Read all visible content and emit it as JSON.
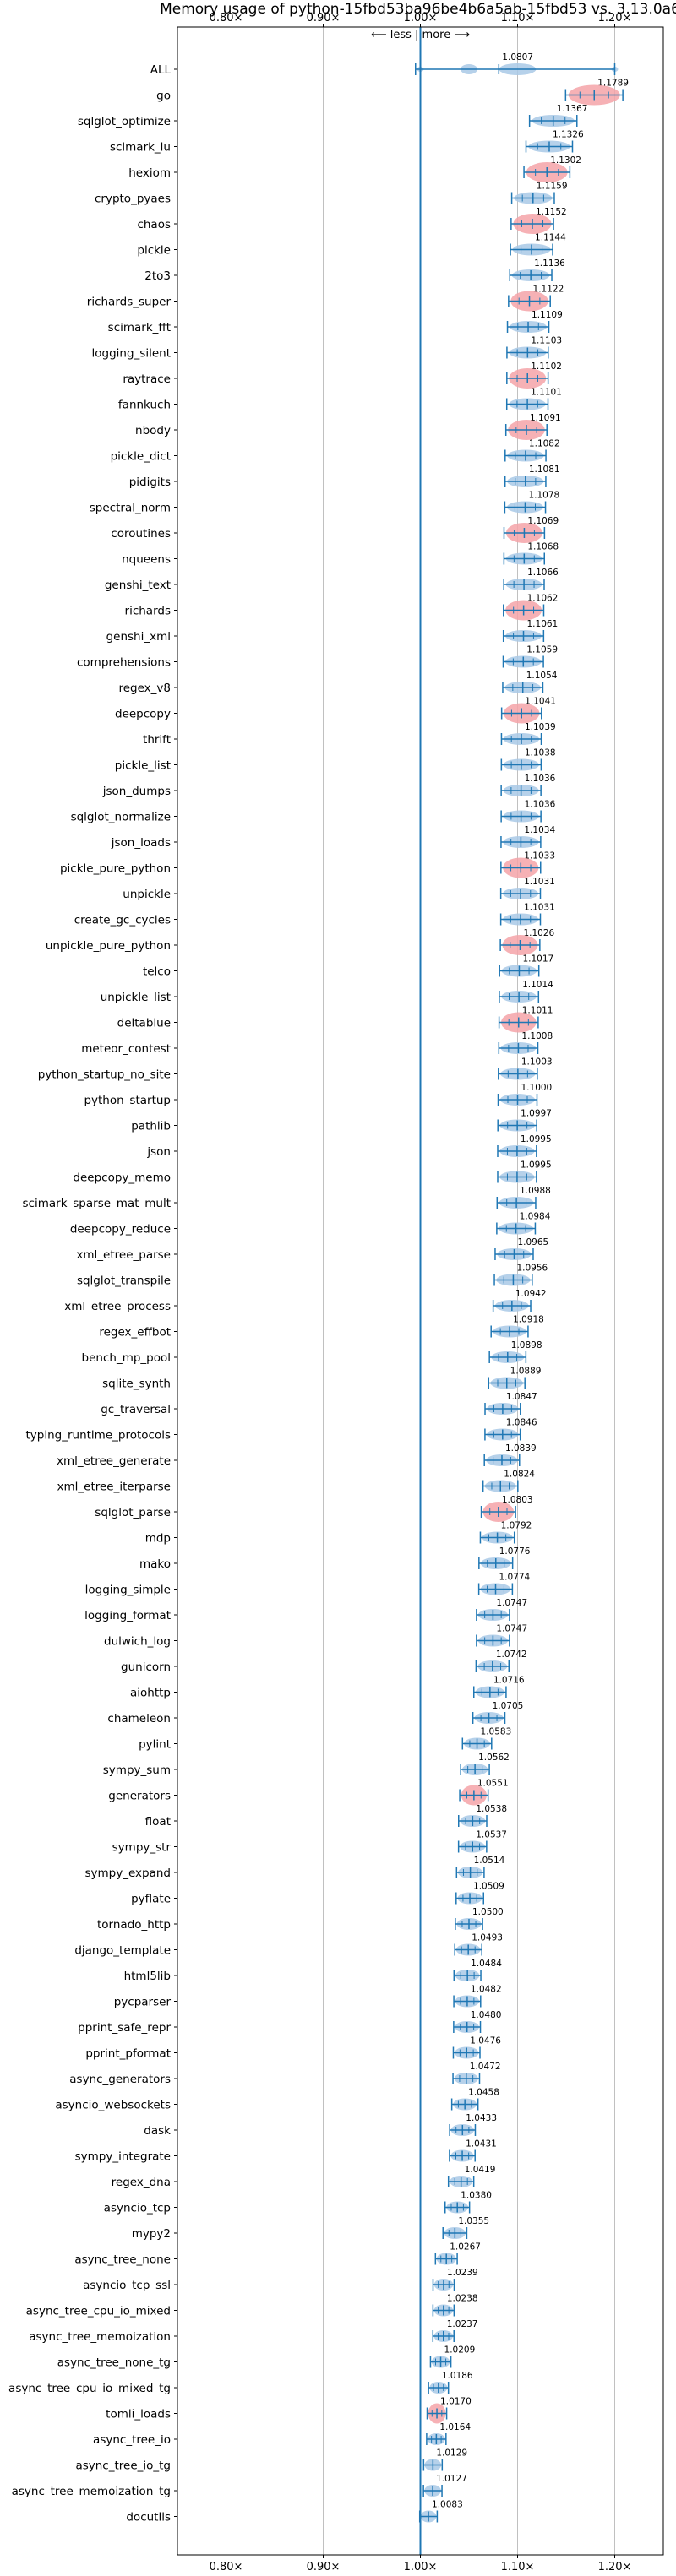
{
  "chart_data": {
    "type": "violin",
    "title": "Memory usage of python-15fbd53ba96be4b6a5ab-15fbd53 vs. 3.13.0a6",
    "xlabel": "",
    "ylabel": "",
    "xlim": [
      0.75,
      1.25
    ],
    "xticks": [
      0.8,
      0.9,
      1.0,
      1.1,
      1.2
    ],
    "xtick_labels": [
      "0.80×",
      "0.90×",
      "1.00×",
      "1.10×",
      "1.20×"
    ],
    "reference_x": 1.0,
    "direction_hint": "⟵ less | more ⟶",
    "grid": true,
    "colors": {
      "normal": "#1f77b4",
      "normal_fill": "#a9c9e6",
      "highlight_fill": "#f4a3a8"
    },
    "benchmarks": [
      {
        "name": "ALL",
        "value": 1.0807,
        "highlight": false
      },
      {
        "name": "go",
        "value": 1.1789,
        "highlight": true
      },
      {
        "name": "sqlglot_optimize",
        "value": 1.1367,
        "highlight": false
      },
      {
        "name": "scimark_lu",
        "value": 1.1326,
        "highlight": false
      },
      {
        "name": "hexiom",
        "value": 1.1302,
        "highlight": true
      },
      {
        "name": "crypto_pyaes",
        "value": 1.1159,
        "highlight": false
      },
      {
        "name": "chaos",
        "value": 1.1152,
        "highlight": true
      },
      {
        "name": "pickle",
        "value": 1.1144,
        "highlight": false
      },
      {
        "name": "2to3",
        "value": 1.1136,
        "highlight": false
      },
      {
        "name": "richards_super",
        "value": 1.1122,
        "highlight": true
      },
      {
        "name": "scimark_fft",
        "value": 1.1109,
        "highlight": false
      },
      {
        "name": "logging_silent",
        "value": 1.1103,
        "highlight": false
      },
      {
        "name": "raytrace",
        "value": 1.1102,
        "highlight": true
      },
      {
        "name": "fannkuch",
        "value": 1.1101,
        "highlight": false
      },
      {
        "name": "nbody",
        "value": 1.1091,
        "highlight": true
      },
      {
        "name": "pickle_dict",
        "value": 1.1082,
        "highlight": false
      },
      {
        "name": "pidigits",
        "value": 1.1081,
        "highlight": false
      },
      {
        "name": "spectral_norm",
        "value": 1.1078,
        "highlight": false
      },
      {
        "name": "coroutines",
        "value": 1.1069,
        "highlight": true
      },
      {
        "name": "nqueens",
        "value": 1.1068,
        "highlight": false
      },
      {
        "name": "genshi_text",
        "value": 1.1066,
        "highlight": false
      },
      {
        "name": "richards",
        "value": 1.1062,
        "highlight": true
      },
      {
        "name": "genshi_xml",
        "value": 1.1061,
        "highlight": false
      },
      {
        "name": "comprehensions",
        "value": 1.1059,
        "highlight": false
      },
      {
        "name": "regex_v8",
        "value": 1.1054,
        "highlight": false
      },
      {
        "name": "deepcopy",
        "value": 1.1041,
        "highlight": true
      },
      {
        "name": "thrift",
        "value": 1.1039,
        "highlight": false
      },
      {
        "name": "pickle_list",
        "value": 1.1038,
        "highlight": false
      },
      {
        "name": "json_dumps",
        "value": 1.1036,
        "highlight": false
      },
      {
        "name": "sqlglot_normalize",
        "value": 1.1036,
        "highlight": false
      },
      {
        "name": "json_loads",
        "value": 1.1034,
        "highlight": false
      },
      {
        "name": "pickle_pure_python",
        "value": 1.1033,
        "highlight": true
      },
      {
        "name": "unpickle",
        "value": 1.1031,
        "highlight": false
      },
      {
        "name": "create_gc_cycles",
        "value": 1.1031,
        "highlight": false
      },
      {
        "name": "unpickle_pure_python",
        "value": 1.1026,
        "highlight": true
      },
      {
        "name": "telco",
        "value": 1.1017,
        "highlight": false
      },
      {
        "name": "unpickle_list",
        "value": 1.1014,
        "highlight": false
      },
      {
        "name": "deltablue",
        "value": 1.1011,
        "highlight": true
      },
      {
        "name": "meteor_contest",
        "value": 1.1008,
        "highlight": false
      },
      {
        "name": "python_startup_no_site",
        "value": 1.1003,
        "highlight": false
      },
      {
        "name": "python_startup",
        "value": 1.1,
        "highlight": false
      },
      {
        "name": "pathlib",
        "value": 1.0997,
        "highlight": false
      },
      {
        "name": "json",
        "value": 1.0995,
        "highlight": false
      },
      {
        "name": "deepcopy_memo",
        "value": 1.0995,
        "highlight": false
      },
      {
        "name": "scimark_sparse_mat_mult",
        "value": 1.0988,
        "highlight": false
      },
      {
        "name": "deepcopy_reduce",
        "value": 1.0984,
        "highlight": false
      },
      {
        "name": "xml_etree_parse",
        "value": 1.0965,
        "highlight": false
      },
      {
        "name": "sqlglot_transpile",
        "value": 1.0956,
        "highlight": false
      },
      {
        "name": "xml_etree_process",
        "value": 1.0942,
        "highlight": false
      },
      {
        "name": "regex_effbot",
        "value": 1.0918,
        "highlight": false
      },
      {
        "name": "bench_mp_pool",
        "value": 1.0898,
        "highlight": false
      },
      {
        "name": "sqlite_synth",
        "value": 1.0889,
        "highlight": false
      },
      {
        "name": "gc_traversal",
        "value": 1.0847,
        "highlight": false
      },
      {
        "name": "typing_runtime_protocols",
        "value": 1.0846,
        "highlight": false
      },
      {
        "name": "xml_etree_generate",
        "value": 1.0839,
        "highlight": false
      },
      {
        "name": "xml_etree_iterparse",
        "value": 1.0824,
        "highlight": false
      },
      {
        "name": "sqlglot_parse",
        "value": 1.0803,
        "highlight": true
      },
      {
        "name": "mdp",
        "value": 1.0792,
        "highlight": false
      },
      {
        "name": "mako",
        "value": 1.0776,
        "highlight": false
      },
      {
        "name": "logging_simple",
        "value": 1.0774,
        "highlight": false
      },
      {
        "name": "logging_format",
        "value": 1.0747,
        "highlight": false
      },
      {
        "name": "dulwich_log",
        "value": 1.0747,
        "highlight": false
      },
      {
        "name": "gunicorn",
        "value": 1.0742,
        "highlight": false
      },
      {
        "name": "aiohttp",
        "value": 1.0716,
        "highlight": false
      },
      {
        "name": "chameleon",
        "value": 1.0705,
        "highlight": false
      },
      {
        "name": "pylint",
        "value": 1.0583,
        "highlight": false
      },
      {
        "name": "sympy_sum",
        "value": 1.0562,
        "highlight": false
      },
      {
        "name": "generators",
        "value": 1.0551,
        "highlight": true
      },
      {
        "name": "float",
        "value": 1.0538,
        "highlight": false
      },
      {
        "name": "sympy_str",
        "value": 1.0537,
        "highlight": false
      },
      {
        "name": "sympy_expand",
        "value": 1.0514,
        "highlight": false
      },
      {
        "name": "pyflate",
        "value": 1.0509,
        "highlight": false
      },
      {
        "name": "tornado_http",
        "value": 1.05,
        "highlight": false
      },
      {
        "name": "django_template",
        "value": 1.0493,
        "highlight": false
      },
      {
        "name": "html5lib",
        "value": 1.0484,
        "highlight": false
      },
      {
        "name": "pycparser",
        "value": 1.0482,
        "highlight": false
      },
      {
        "name": "pprint_safe_repr",
        "value": 1.048,
        "highlight": false
      },
      {
        "name": "pprint_pformat",
        "value": 1.0476,
        "highlight": false
      },
      {
        "name": "async_generators",
        "value": 1.0472,
        "highlight": false
      },
      {
        "name": "asyncio_websockets",
        "value": 1.0458,
        "highlight": false
      },
      {
        "name": "dask",
        "value": 1.0433,
        "highlight": false
      },
      {
        "name": "sympy_integrate",
        "value": 1.0431,
        "highlight": false
      },
      {
        "name": "regex_dna",
        "value": 1.0419,
        "highlight": false
      },
      {
        "name": "asyncio_tcp",
        "value": 1.038,
        "highlight": false
      },
      {
        "name": "mypy2",
        "value": 1.0355,
        "highlight": false
      },
      {
        "name": "async_tree_none",
        "value": 1.0267,
        "highlight": false
      },
      {
        "name": "asyncio_tcp_ssl",
        "value": 1.0239,
        "highlight": false
      },
      {
        "name": "async_tree_cpu_io_mixed",
        "value": 1.0238,
        "highlight": false
      },
      {
        "name": "async_tree_memoization",
        "value": 1.0237,
        "highlight": false
      },
      {
        "name": "async_tree_none_tg",
        "value": 1.0209,
        "highlight": false
      },
      {
        "name": "async_tree_cpu_io_mixed_tg",
        "value": 1.0186,
        "highlight": false
      },
      {
        "name": "tomli_loads",
        "value": 1.017,
        "highlight": true
      },
      {
        "name": "async_tree_io",
        "value": 1.0164,
        "highlight": false
      },
      {
        "name": "async_tree_io_tg",
        "value": 1.0129,
        "highlight": false
      },
      {
        "name": "async_tree_memoization_tg",
        "value": 1.0127,
        "highlight": false
      },
      {
        "name": "docutils",
        "value": 1.0083,
        "highlight": false
      }
    ]
  }
}
